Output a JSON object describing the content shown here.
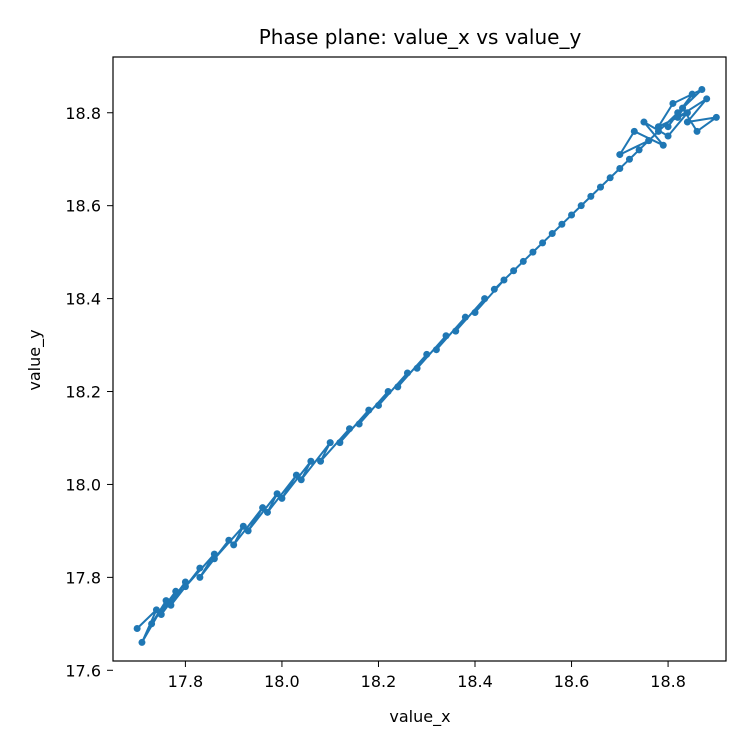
{
  "chart_data": {
    "type": "line",
    "title": "Phase plane: value_x vs value_y",
    "xlabel": "value_x",
    "ylabel": "value_y",
    "xlim": [
      17.65,
      18.92
    ],
    "ylim": [
      17.62,
      18.92
    ],
    "xticks": [
      17.8,
      18.0,
      18.2,
      18.4,
      18.6,
      18.8
    ],
    "yticks": [
      17.6,
      17.8,
      18.0,
      18.2,
      18.4,
      18.6,
      18.8
    ],
    "xtick_labels": [
      "17.8",
      "18.0",
      "18.2",
      "18.4",
      "18.6",
      "18.8"
    ],
    "ytick_labels": [
      "17.6",
      "17.8",
      "18.0",
      "18.2",
      "18.4",
      "18.6",
      "18.8"
    ],
    "grid": false,
    "legend": "none",
    "colors": {
      "series": "#1f77b4"
    },
    "series": [
      {
        "marker": "circle",
        "x": [
          17.7,
          17.74,
          17.71,
          17.76,
          17.73,
          17.78,
          17.75,
          17.8,
          17.77,
          17.83,
          17.8,
          17.86,
          17.83,
          17.89,
          17.86,
          17.92,
          17.9,
          17.96,
          17.93,
          17.99,
          17.97,
          18.03,
          18.0,
          18.06,
          18.04,
          18.1,
          18.08,
          18.14,
          18.12,
          18.18,
          18.16,
          18.22,
          18.2,
          18.26,
          18.24,
          18.3,
          18.28,
          18.34,
          18.32,
          18.38,
          18.36,
          18.42,
          18.4,
          18.46,
          18.44,
          18.5,
          18.48,
          18.54,
          18.52,
          18.58,
          18.56,
          18.62,
          18.6,
          18.66,
          18.64,
          18.7,
          18.68,
          18.74,
          18.72,
          18.78,
          18.76,
          18.82,
          18.8,
          18.85,
          18.82,
          18.88,
          18.84,
          18.9,
          18.86,
          18.83,
          18.87,
          18.81,
          18.78,
          18.84,
          18.8,
          18.75,
          18.79,
          18.73,
          18.7,
          18.76
        ],
        "y": [
          17.69,
          17.73,
          17.66,
          17.75,
          17.7,
          17.77,
          17.72,
          17.79,
          17.74,
          17.82,
          17.78,
          17.85,
          17.8,
          17.88,
          17.84,
          17.91,
          17.87,
          17.95,
          17.9,
          17.98,
          17.94,
          18.02,
          17.97,
          18.05,
          18.01,
          18.09,
          18.05,
          18.12,
          18.09,
          18.16,
          18.13,
          18.2,
          18.17,
          18.24,
          18.21,
          18.28,
          18.25,
          18.32,
          18.29,
          18.36,
          18.33,
          18.4,
          18.37,
          18.44,
          18.42,
          18.48,
          18.46,
          18.52,
          18.5,
          18.56,
          18.54,
          18.6,
          18.58,
          18.64,
          18.62,
          18.68,
          18.66,
          18.72,
          18.7,
          18.76,
          18.74,
          18.8,
          18.77,
          18.84,
          18.79,
          18.83,
          18.78,
          18.79,
          18.76,
          18.81,
          18.85,
          18.82,
          18.77,
          18.8,
          18.75,
          18.78,
          18.73,
          18.76,
          18.71,
          18.74
        ]
      }
    ]
  }
}
